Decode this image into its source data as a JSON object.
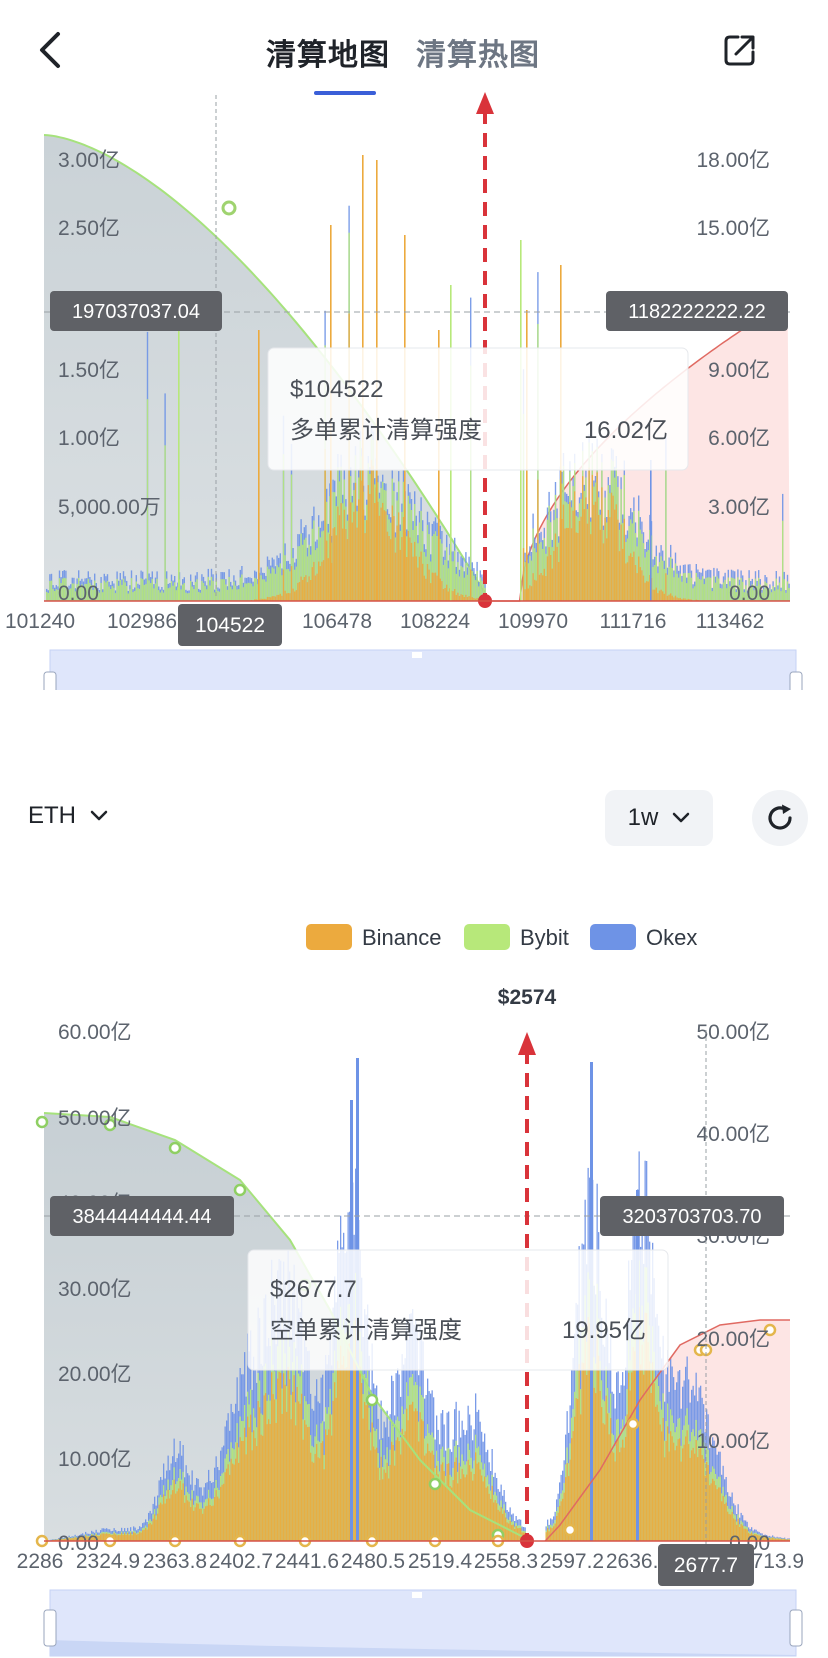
{
  "header": {
    "back_icon": "chevron-left-icon",
    "tabs": [
      {
        "label": "清算地图",
        "active": true
      },
      {
        "label": "清算热图",
        "active": false
      }
    ],
    "share_icon": "share-icon",
    "accent": "#3a5fd8"
  },
  "colors": {
    "binance": "#ecaa3e",
    "bybit": "#b7e87a",
    "okex": "#6e93e6",
    "long_area": "#c9d1d5",
    "short_area": "#fde5e4",
    "current_price": "#d9333a"
  },
  "btc_chart": {
    "type": "bar",
    "left_axis_ticks": [
      "3.00亿",
      "2.50亿",
      "1.50亿",
      "1.00亿",
      "5,000.00万",
      "0.00"
    ],
    "right_axis_ticks": [
      "18.00亿",
      "15.00亿",
      "9.00亿",
      "6.00亿",
      "3.00亿",
      "0.00"
    ],
    "x_ticks": [
      "101240",
      "102986",
      "106478",
      "108224",
      "109970",
      "111716",
      "113462"
    ],
    "x_range": [
      101240,
      114500
    ],
    "current_price": 109160,
    "crosshair_x": 104522,
    "crosshair_x_label": "104522",
    "crosshair_left_value": "197037037.04",
    "crosshair_right_value": "1182222222.22",
    "tooltip": {
      "price": "$104522",
      "label": "多单累计清算强度",
      "value": "16.02亿"
    }
  },
  "eth_controls": {
    "coin": "ETH",
    "period": "1w",
    "chevron_icon": "chevron-down-icon",
    "refresh_icon": "refresh-icon"
  },
  "eth_chart": {
    "type": "bar",
    "legend": [
      "Binance",
      "Bybit",
      "Okex"
    ],
    "current_price_label": "$2574",
    "current_price": 2574,
    "left_axis_ticks": [
      "60.00亿",
      "50.00亿",
      "40.00亿",
      "30.00亿",
      "20.00亿",
      "10.00亿",
      "0.00"
    ],
    "right_axis_ticks": [
      "50.00亿",
      "40.00亿",
      "30.00亿",
      "20.00亿",
      "10.00亿",
      "0.00"
    ],
    "x_ticks": [
      "2286",
      "2324.9",
      "2363.8",
      "2402.7",
      "2441.6",
      "2480.5",
      "2519.4",
      "2558.3",
      "2597.2",
      "2636.1",
      "2713.9"
    ],
    "x_range": [
      2286,
      2727
    ],
    "crosshair_x": 2677.7,
    "crosshair_x_label": "2677.7",
    "crosshair_left_value": "3844444444.44",
    "crosshair_right_value": "3203703703.70",
    "tooltip": {
      "price": "$2677.7",
      "label": "空单累计清算强度",
      "value": "19.95亿"
    }
  }
}
